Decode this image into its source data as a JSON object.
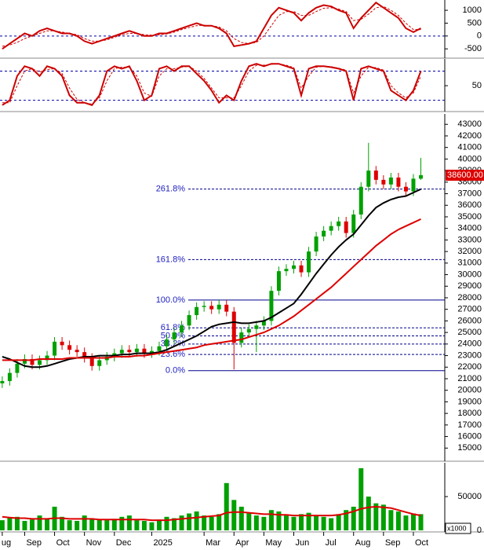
{
  "chart_data": [
    {
      "type": "line",
      "xlim": [
        -0.3,
        59.2
      ],
      "ylim": [
        -800,
        1400
      ],
      "yticks": [
        -500,
        0,
        500,
        1000
      ],
      "hlines": [
        0
      ],
      "series": [
        {
          "color": "#cc0000",
          "dash": false,
          "values": [
            -500,
            -300,
            -100,
            100,
            0,
            200,
            300,
            200,
            100,
            100,
            0,
            -200,
            -300,
            -200,
            -100,
            0,
            100,
            200,
            100,
            0,
            0,
            100,
            100,
            200,
            300,
            400,
            500,
            400,
            400,
            300,
            100,
            -400,
            -350,
            -300,
            -200,
            300,
            800,
            1100,
            1000,
            900,
            600,
            900,
            1100,
            1200,
            1150,
            1000,
            900,
            300,
            700,
            1000,
            1300,
            1100,
            900,
            700,
            300,
            150,
            300
          ]
        },
        {
          "color": "#cc0000",
          "dash": true,
          "values": [
            -400,
            -350,
            -250,
            -100,
            0,
            100,
            200,
            200,
            150,
            100,
            50,
            -100,
            -200,
            -200,
            -150,
            -50,
            50,
            100,
            100,
            50,
            30,
            50,
            80,
            150,
            250,
            330,
            400,
            420,
            400,
            350,
            200,
            -100,
            -250,
            -300,
            -250,
            0,
            400,
            800,
            950,
            950,
            800,
            800,
            950,
            1080,
            1100,
            1050,
            950,
            600,
            650,
            850,
            1100,
            1150,
            1000,
            800,
            500,
            250,
            250
          ]
        }
      ]
    },
    {
      "type": "line",
      "xlim": [
        -0.3,
        59.2
      ],
      "ylim": [
        0,
        105
      ],
      "yticks": [
        50
      ],
      "hlines": [
        20,
        80
      ],
      "series": [
        {
          "color": "#cc0000",
          "dash": false,
          "values": [
            10,
            20,
            70,
            90,
            85,
            70,
            90,
            85,
            70,
            30,
            15,
            15,
            10,
            30,
            80,
            90,
            85,
            90,
            60,
            20,
            30,
            85,
            90,
            80,
            90,
            90,
            75,
            60,
            40,
            15,
            30,
            20,
            60,
            90,
            95,
            90,
            95,
            95,
            90,
            85,
            30,
            85,
            90,
            90,
            88,
            85,
            80,
            20,
            85,
            90,
            85,
            80,
            40,
            30,
            20,
            40,
            80
          ]
        },
        {
          "color": "#cc0000",
          "dash": true,
          "values": [
            15,
            15,
            50,
            80,
            85,
            78,
            83,
            85,
            75,
            45,
            22,
            15,
            12,
            25,
            60,
            85,
            88,
            88,
            70,
            35,
            28,
            70,
            85,
            85,
            88,
            90,
            80,
            65,
            45,
            25,
            25,
            25,
            50,
            80,
            92,
            92,
            94,
            95,
            92,
            87,
            45,
            70,
            88,
            90,
            89,
            86,
            82,
            35,
            70,
            88,
            87,
            82,
            50,
            35,
            25,
            35,
            70
          ]
        }
      ]
    },
    {
      "type": "candlestick",
      "xlim": [
        -0.3,
        59.2
      ],
      "ylim": [
        14000,
        43900
      ],
      "yticks": [
        15000,
        16000,
        17000,
        18000,
        19000,
        20000,
        21000,
        22000,
        23000,
        24000,
        25000,
        26000,
        27000,
        28000,
        29000,
        30000,
        31000,
        32000,
        33000,
        34000,
        35000,
        36000,
        37000,
        38000,
        39000,
        40000,
        41000,
        42000,
        43000
      ],
      "up_color": "#00a000",
      "down_color": "#dd0000",
      "open": [
        20600,
        20800,
        21500,
        22300,
        22700,
        22200,
        22600,
        23000,
        24200,
        23900,
        23500,
        23300,
        22800,
        22100,
        22600,
        22900,
        23200,
        23500,
        23300,
        23600,
        23200,
        23400,
        23800,
        24400,
        25000,
        25600,
        26500,
        27200,
        27300,
        27000,
        27400,
        26800,
        24100,
        25000,
        25300,
        25600,
        26000,
        28600,
        30300,
        30500,
        30800,
        30200,
        32000,
        33300,
        33800,
        34200,
        34600,
        33600,
        35200,
        37600,
        39000,
        38200,
        37800,
        38400,
        37600,
        37200,
        38300
      ],
      "high": [
        21200,
        21900,
        22700,
        23100,
        23100,
        23000,
        23400,
        24600,
        24600,
        24300,
        23900,
        23700,
        23200,
        23000,
        23300,
        23600,
        23900,
        23900,
        24000,
        24000,
        23800,
        24200,
        24800,
        25400,
        26000,
        26900,
        27600,
        27700,
        27700,
        27800,
        27800,
        27200,
        25400,
        25700,
        26000,
        26400,
        29000,
        30700,
        30900,
        31200,
        31200,
        32400,
        33700,
        34200,
        34600,
        35000,
        35000,
        35600,
        38000,
        41400,
        39400,
        38600,
        38800,
        38800,
        38000,
        38700,
        40100
      ],
      "low": [
        20200,
        20400,
        21100,
        21900,
        21800,
        21800,
        22200,
        22600,
        23500,
        23100,
        22900,
        22400,
        21700,
        21700,
        22200,
        22500,
        22800,
        22900,
        22900,
        22800,
        22800,
        23000,
        23400,
        24000,
        24600,
        25200,
        26100,
        26800,
        26600,
        26600,
        26400,
        21800,
        23700,
        24600,
        23300,
        25200,
        25600,
        28200,
        29900,
        30100,
        29800,
        29800,
        31600,
        32900,
        33400,
        33800,
        33200,
        33200,
        34800,
        37200,
        37800,
        37400,
        37400,
        37200,
        36800,
        36800,
        38200
      ],
      "close": [
        20800,
        21500,
        22300,
        22700,
        22200,
        22600,
        23000,
        24200,
        23900,
        23500,
        23300,
        22800,
        22100,
        22600,
        22900,
        23200,
        23500,
        23300,
        23600,
        23200,
        23400,
        23800,
        24400,
        25000,
        25600,
        26500,
        27200,
        27300,
        27000,
        27400,
        26800,
        24100,
        25000,
        25300,
        25600,
        26000,
        28600,
        30300,
        30500,
        30800,
        30200,
        32000,
        33300,
        33800,
        34200,
        34600,
        33600,
        35200,
        37600,
        39000,
        38200,
        37800,
        38400,
        37600,
        37200,
        38300,
        38600
      ],
      "series": [
        {
          "color": "#000000",
          "values": [
            22900,
            22700,
            22400,
            22100,
            22000,
            22000,
            22100,
            22300,
            22500,
            22700,
            22800,
            22900,
            22900,
            23000,
            23000,
            23000,
            23100,
            23100,
            23200,
            23200,
            23200,
            23300,
            23500,
            23800,
            24100,
            24400,
            24700,
            25100,
            25500,
            25700,
            25800,
            25900,
            25800,
            25800,
            25900,
            26000,
            26300,
            26700,
            27100,
            27500,
            28300,
            29200,
            30100,
            30900,
            31700,
            32400,
            33000,
            33500,
            34300,
            35100,
            35800,
            36200,
            36500,
            36700,
            36800,
            37100,
            37400
          ]
        },
        {
          "color": "#dd0000",
          "values": [
            22600,
            22600,
            22600,
            22600,
            22600,
            22700,
            22700,
            22700,
            22700,
            22800,
            22800,
            22800,
            22800,
            22800,
            22800,
            22900,
            22900,
            22900,
            23000,
            23000,
            23100,
            23200,
            23300,
            23400,
            23500,
            23600,
            23700,
            23900,
            24000,
            24100,
            24200,
            24300,
            24400,
            24600,
            24800,
            25000,
            25300,
            25600,
            26000,
            26400,
            26900,
            27400,
            27900,
            28400,
            28900,
            29500,
            30100,
            30700,
            31300,
            31900,
            32500,
            33000,
            33500,
            33900,
            34200,
            34500,
            34800
          ]
        }
      ],
      "fib_levels": [
        {
          "value": 37400,
          "label": "261.8%"
        },
        {
          "value": 31300,
          "label": "161.8%"
        },
        {
          "value": 27800,
          "label": "100.0%"
        },
        {
          "value": 25400,
          "label": "61.8%"
        },
        {
          "value": 24700,
          "label": "50.0%"
        },
        {
          "value": 24000,
          "label": "38.2%"
        },
        {
          "value": 23100,
          "label": "23.6%"
        },
        {
          "value": 21700,
          "label": "0.0%"
        }
      ],
      "last_price": {
        "value": 38600,
        "label": "38600.00"
      }
    },
    {
      "type": "bar",
      "xlim": [
        -0.3,
        59.2
      ],
      "ylim": [
        0,
        100000
      ],
      "yticks": [
        0,
        50000
      ],
      "unit_label": "x1000",
      "color": "#00a000",
      "values": [
        15000,
        18000,
        20000,
        14000,
        16000,
        22000,
        18000,
        35000,
        20000,
        15000,
        14000,
        22000,
        18000,
        16000,
        15000,
        17000,
        20000,
        22000,
        15000,
        14000,
        12000,
        16000,
        20000,
        18000,
        22000,
        25000,
        28000,
        22000,
        20000,
        24000,
        70000,
        45000,
        35000,
        25000,
        22000,
        20000,
        30000,
        28000,
        22000,
        20000,
        24000,
        26000,
        22000,
        20000,
        18000,
        24000,
        30000,
        35000,
        92000,
        50000,
        40000,
        38000,
        30000,
        28000,
        22000,
        25000,
        24000
      ],
      "series": [
        {
          "color": "#dd0000",
          "values": [
            20000,
            19000,
            18000,
            18000,
            17000,
            17000,
            17000,
            18000,
            18000,
            17000,
            17000,
            17000,
            17000,
            16000,
            16000,
            16000,
            16000,
            16000,
            16000,
            16000,
            15000,
            15000,
            15000,
            16000,
            17000,
            18000,
            19000,
            20000,
            21000,
            22000,
            26000,
            27000,
            27000,
            26000,
            25000,
            24000,
            24000,
            23000,
            23000,
            22000,
            22000,
            22000,
            22000,
            22000,
            22000,
            23000,
            25000,
            28000,
            32000,
            34000,
            35000,
            34000,
            33000,
            30000,
            27000,
            24000,
            22000
          ]
        }
      ],
      "xticks": [
        {
          "value": 0,
          "label": "ug"
        },
        {
          "value": 3,
          "label": "Sep"
        },
        {
          "value": 7,
          "label": "Oct"
        },
        {
          "value": 11,
          "label": "Nov"
        },
        {
          "value": 15,
          "label": "Dec"
        },
        {
          "value": 20,
          "label": "2025"
        },
        {
          "value": 27,
          "label": "Mar"
        },
        {
          "value": 31,
          "label": "Apr"
        },
        {
          "value": 35,
          "label": "May"
        },
        {
          "value": 39,
          "label": "Jun"
        },
        {
          "value": 43,
          "label": "Jul"
        },
        {
          "value": 47,
          "label": "Aug"
        },
        {
          "value": 51,
          "label": "Sep"
        },
        {
          "value": 55,
          "label": "Oct"
        }
      ]
    }
  ]
}
